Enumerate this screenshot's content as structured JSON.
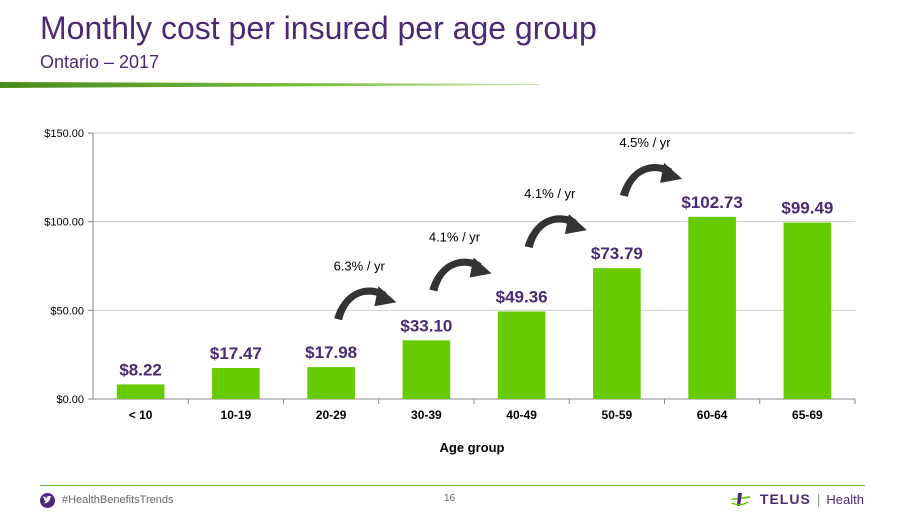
{
  "header": {
    "title": "Monthly cost per insured per age group",
    "subtitle": "Ontario – 2017"
  },
  "colors": {
    "bar": "#66cc00",
    "label": "#4b2a73",
    "arrow": "#333333",
    "accent_green": "#7ac142"
  },
  "chart_data": {
    "type": "bar",
    "categories": [
      "< 10",
      "10-19",
      "20-29",
      "30-39",
      "40-49",
      "50-59",
      "60-64",
      "65-69"
    ],
    "values": [
      8.22,
      17.47,
      17.98,
      33.1,
      49.36,
      73.79,
      102.73,
      99.49
    ],
    "value_labels": [
      "$8.22",
      "$17.47",
      "$17.98",
      "$33.10",
      "$49.36",
      "$73.79",
      "$102.73",
      "$99.49"
    ],
    "title": "Monthly cost per insured per age group",
    "subtitle": "Ontario – 2017",
    "xlabel": "Age group",
    "ylabel": "",
    "ylim": [
      0,
      150
    ],
    "yticks": [
      0,
      50,
      100,
      150
    ],
    "ytick_labels": [
      "$0.00",
      "$50.00",
      "$100.00",
      "$150.00"
    ],
    "grid": true,
    "annotations": [
      {
        "text": "6.3% / yr",
        "from_category": "20-29",
        "to_category": "30-39"
      },
      {
        "text": "4.1% / yr",
        "from_category": "30-39",
        "to_category": "40-49"
      },
      {
        "text": "4.1% / yr",
        "from_category": "40-49",
        "to_category": "50-59"
      },
      {
        "text": "4.5% / yr",
        "from_category": "50-59",
        "to_category": "60-64"
      }
    ]
  },
  "footer": {
    "hashtag": "#HealthBenefitsTrends",
    "page_number": "16",
    "logo_word": "TELUS",
    "logo_separator": "|",
    "logo_health": "Health"
  }
}
